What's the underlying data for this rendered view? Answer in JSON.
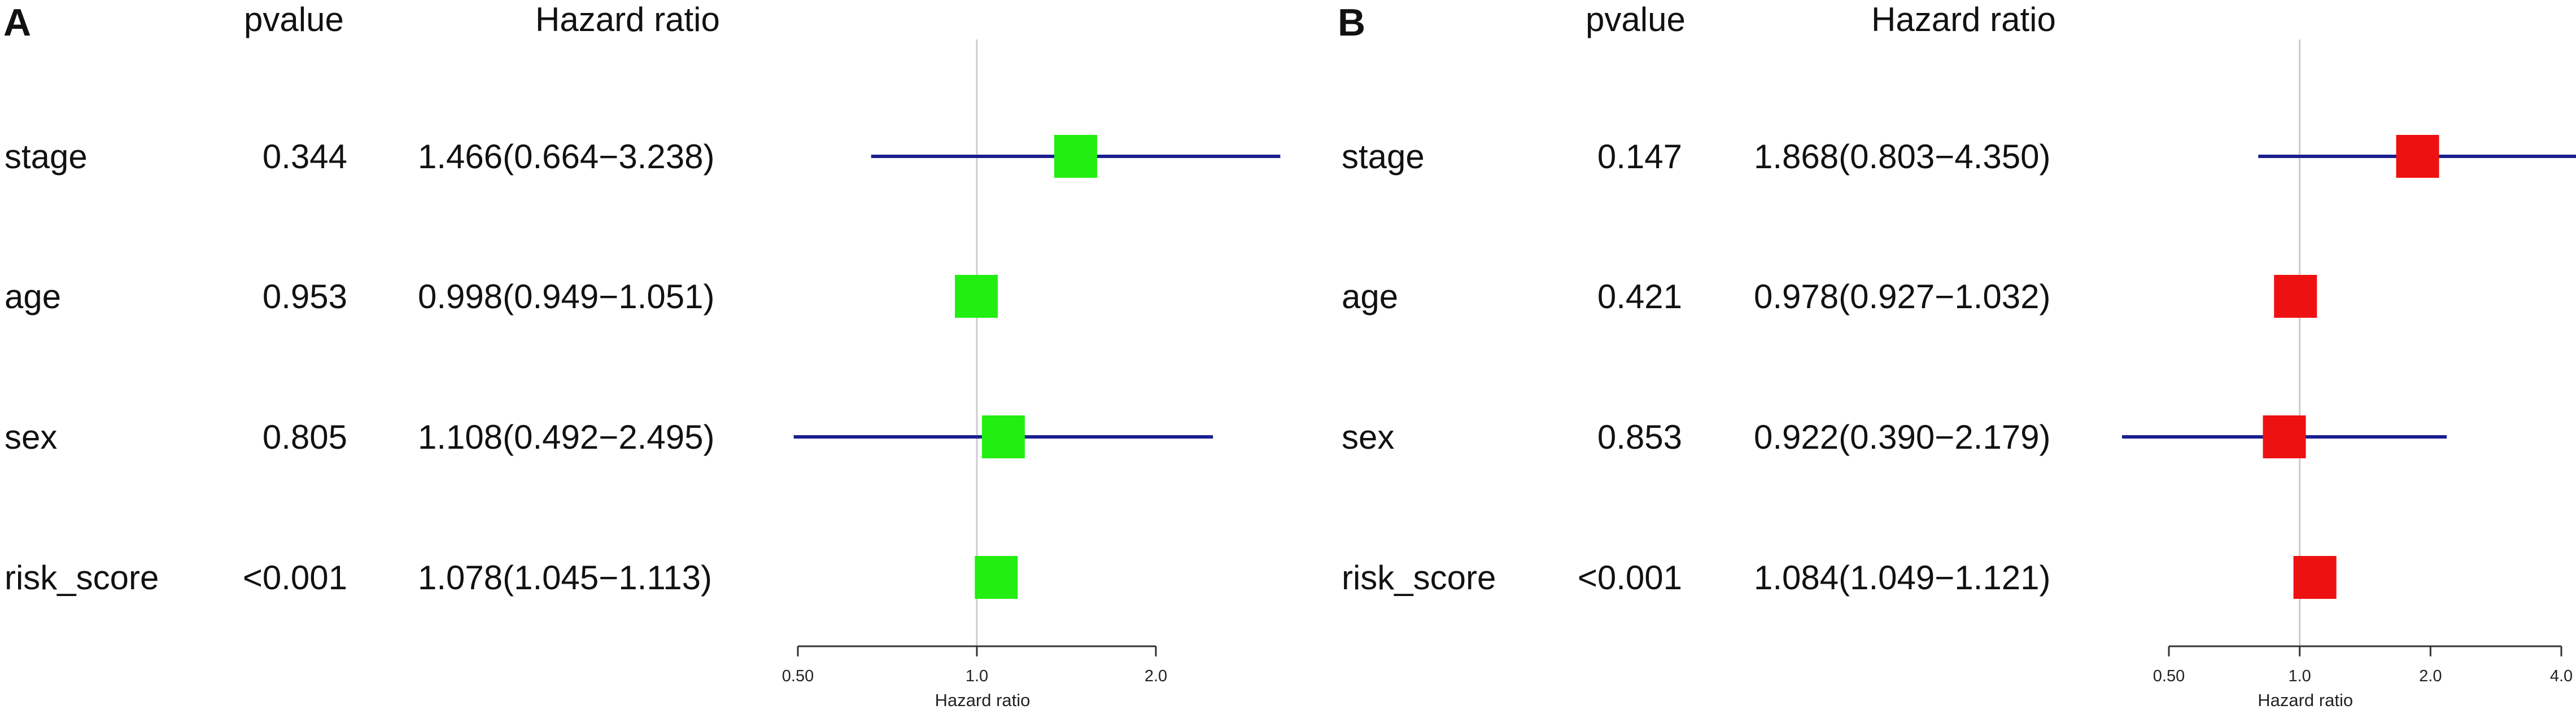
{
  "chart_data": [
    {
      "type": "forest",
      "panel_label": "A",
      "headers": {
        "pvalue": "pvalue",
        "hazard_ratio": "Hazard ratio"
      },
      "xlabel": "Hazard ratio",
      "x_scale": "log",
      "xlim": [
        0.5,
        2.0
      ],
      "xticks": [
        0.5,
        1.0,
        2.0
      ],
      "xtick_labels": [
        "0.50",
        "1.0",
        "2.0"
      ],
      "reference_line": 1.0,
      "box_color": "#22ee11",
      "line_color": "#1a1f8f",
      "rows": [
        {
          "label": "stage",
          "pvalue": "0.344",
          "hr_text": "1.466(0.664−3.238)",
          "hr": 1.466,
          "ci": [
            0.664,
            3.238
          ]
        },
        {
          "label": "age",
          "pvalue": "0.953",
          "hr_text": "0.998(0.949−1.051)",
          "hr": 0.998,
          "ci": [
            0.949,
            1.051
          ]
        },
        {
          "label": "sex",
          "pvalue": "0.805",
          "hr_text": "1.108(0.492−2.495)",
          "hr": 1.108,
          "ci": [
            0.492,
            2.495
          ]
        },
        {
          "label": "risk_score",
          "pvalue": "<0.001",
          "hr_text": "1.078(1.045−1.113)",
          "hr": 1.078,
          "ci": [
            1.045,
            1.113
          ]
        }
      ]
    },
    {
      "type": "forest",
      "panel_label": "B",
      "headers": {
        "pvalue": "pvalue",
        "hazard_ratio": "Hazard ratio"
      },
      "xlabel": "Hazard ratio",
      "x_scale": "log",
      "xlim": [
        0.5,
        4.0
      ],
      "xticks": [
        0.5,
        1.0,
        2.0,
        4.0
      ],
      "xtick_labels": [
        "0.50",
        "1.0",
        "2.0",
        "4.0"
      ],
      "reference_line": 1.0,
      "box_color": "#ee1111",
      "line_color": "#1a1f8f",
      "rows": [
        {
          "label": "stage",
          "pvalue": "0.147",
          "hr_text": "1.868(0.803−4.350)",
          "hr": 1.868,
          "ci": [
            0.803,
            4.35
          ]
        },
        {
          "label": "age",
          "pvalue": "0.421",
          "hr_text": "0.978(0.927−1.032)",
          "hr": 0.978,
          "ci": [
            0.927,
            1.032
          ]
        },
        {
          "label": "sex",
          "pvalue": "0.853",
          "hr_text": "0.922(0.390−2.179)",
          "hr": 0.922,
          "ci": [
            0.39,
            2.179
          ]
        },
        {
          "label": "risk_score",
          "pvalue": "<0.001",
          "hr_text": "1.084(1.049−1.121)",
          "hr": 1.084,
          "ci": [
            1.049,
            1.121
          ]
        }
      ]
    }
  ]
}
